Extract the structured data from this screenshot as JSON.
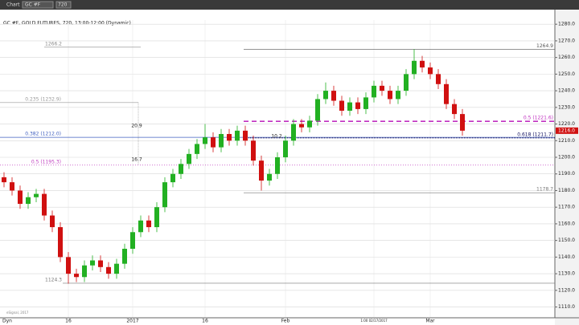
{
  "toolbar": {
    "tab": "Chart",
    "symbol": "GC #F",
    "interval": "720"
  },
  "chart_data": {
    "type": "candlestick",
    "title": "GC #F, GOLD FUTURES, 720, 13:00-12:00 (Dynamic)",
    "categories": [
      null,
      null,
      null,
      null,
      null,
      null,
      null,
      null,
      "16",
      null,
      null,
      null,
      null,
      null,
      null,
      null,
      "2017",
      null,
      null,
      null,
      null,
      null,
      null,
      null,
      null,
      "16",
      null,
      null,
      null,
      null,
      null,
      null,
      null,
      null,
      null,
      "Feb",
      null,
      null,
      null,
      null,
      null,
      null,
      null,
      null,
      null,
      null,
      "1:00 02/17/2017",
      null,
      null,
      null,
      null,
      null,
      null,
      "Mar",
      null,
      null,
      null,
      null
    ],
    "open": [
      1188,
      1185,
      1180,
      1172,
      1176,
      1178,
      1165,
      1158,
      1140,
      1130,
      1128,
      1135,
      1138,
      1134,
      1130,
      1136,
      1145,
      1155,
      1162,
      1158,
      1170,
      1185,
      1190,
      1196,
      1202,
      1208,
      1212,
      1206,
      1214,
      1210,
      1216,
      1210,
      1198,
      1186,
      1190,
      1200,
      1210,
      1220,
      1218,
      1222,
      1235,
      1240,
      1234,
      1228,
      1233,
      1229,
      1236,
      1243,
      1240,
      1235,
      1240,
      1250,
      1258,
      1254,
      1250,
      1244,
      1232,
      1226
    ],
    "high": [
      1191,
      1188,
      1183,
      1179,
      1181,
      1181,
      1168,
      1161,
      1143,
      1133,
      1138,
      1141,
      1141,
      1137,
      1139,
      1148,
      1158,
      1165,
      1165,
      1173,
      1188,
      1193,
      1199,
      1205,
      1211,
      1220,
      1215,
      1217,
      1217,
      1219,
      1219,
      1213,
      1201,
      1193,
      1203,
      1213,
      1223,
      1223,
      1225,
      1238,
      1245,
      1243,
      1237,
      1236,
      1236,
      1239,
      1246,
      1246,
      1243,
      1243,
      1253,
      1265,
      1261,
      1257,
      1253,
      1247,
      1235,
      1229
    ],
    "low": [
      1182,
      1177,
      1169,
      1169,
      1173,
      1162,
      1155,
      1137,
      1124,
      1125,
      1125,
      1132,
      1131,
      1127,
      1127,
      1133,
      1142,
      1152,
      1155,
      1155,
      1167,
      1182,
      1187,
      1193,
      1199,
      1205,
      1203,
      1203,
      1207,
      1207,
      1207,
      1195,
      1180,
      1183,
      1187,
      1197,
      1207,
      1215,
      1215,
      1219,
      1232,
      1231,
      1225,
      1225,
      1226,
      1226,
      1233,
      1237,
      1232,
      1232,
      1237,
      1247,
      1251,
      1247,
      1241,
      1229,
      1223,
      1213
    ],
    "close": [
      1185,
      1180,
      1172,
      1176,
      1178,
      1165,
      1158,
      1140,
      1130,
      1128,
      1135,
      1138,
      1134,
      1130,
      1136,
      1145,
      1155,
      1162,
      1158,
      1170,
      1185,
      1190,
      1196,
      1202,
      1208,
      1212,
      1206,
      1214,
      1210,
      1216,
      1210,
      1198,
      1186,
      1190,
      1200,
      1210,
      1220,
      1218,
      1222,
      1235,
      1240,
      1234,
      1228,
      1233,
      1229,
      1236,
      1243,
      1240,
      1235,
      1240,
      1250,
      1258,
      1254,
      1250,
      1244,
      1232,
      1226,
      1216
    ],
    "up_color": "#22b022",
    "down_color": "#d01010",
    "ylim": [
      1104,
      1282.5
    ],
    "yticks": [
      {
        "value": 1110,
        "label": "1110.0"
      },
      {
        "value": 1120,
        "label": "1120.0"
      },
      {
        "value": 1130,
        "label": "1130.0"
      },
      {
        "value": 1140,
        "label": "1140.0"
      },
      {
        "value": 1150,
        "label": "1150.0"
      },
      {
        "value": 1160,
        "label": "1160.0"
      },
      {
        "value": 1170,
        "label": "1170.0"
      },
      {
        "value": 1180,
        "label": "1180.0"
      },
      {
        "value": 1190,
        "label": "1190.0"
      },
      {
        "value": 1200,
        "label": "1200.0"
      },
      {
        "value": 1210,
        "label": "1210.0"
      },
      {
        "value": 1220,
        "label": "1220.0"
      },
      {
        "value": 1230,
        "label": "1230.0"
      },
      {
        "value": 1240,
        "label": "1240.0"
      },
      {
        "value": 1250,
        "label": "1250.0"
      },
      {
        "value": 1260,
        "label": "1260.0"
      },
      {
        "value": 1270,
        "label": "1270.0"
      },
      {
        "value": 1280,
        "label": "1280.0"
      }
    ],
    "grid": true,
    "last_price": {
      "value": 1216.0,
      "label": "1216.0",
      "color": "#d01010"
    },
    "levels": [
      {
        "label": "1266.2",
        "value": 1266.2,
        "color": "#888888"
      },
      {
        "label": "1264.9",
        "value": 1264.9,
        "color": "#555555"
      },
      {
        "label": "0.235 (1232.9)",
        "value": 1232.9,
        "color": "#999999"
      },
      {
        "label": "0.382 (1212.0)",
        "value": 1212.0,
        "color": "#4060c0"
      },
      {
        "label": "0.5 (1195.3)",
        "value": 1195.3,
        "color": "#c040c0"
      },
      {
        "label": "1124.3",
        "value": 1124.3,
        "color": "#777777"
      },
      {
        "label": "0.5 (1221.6)",
        "value": 1221.6,
        "color": "#c030c0"
      },
      {
        "label": "0.618 (1211.7)",
        "value": 1211.7,
        "color": "#101060"
      },
      {
        "label": "1178.7",
        "value": 1178.7,
        "color": "#777777"
      }
    ],
    "notes": [
      "20.9",
      "16.7",
      "10.2"
    ],
    "footer": {
      "mode": "Dyn",
      "credit": "eSignal, 2017"
    }
  }
}
